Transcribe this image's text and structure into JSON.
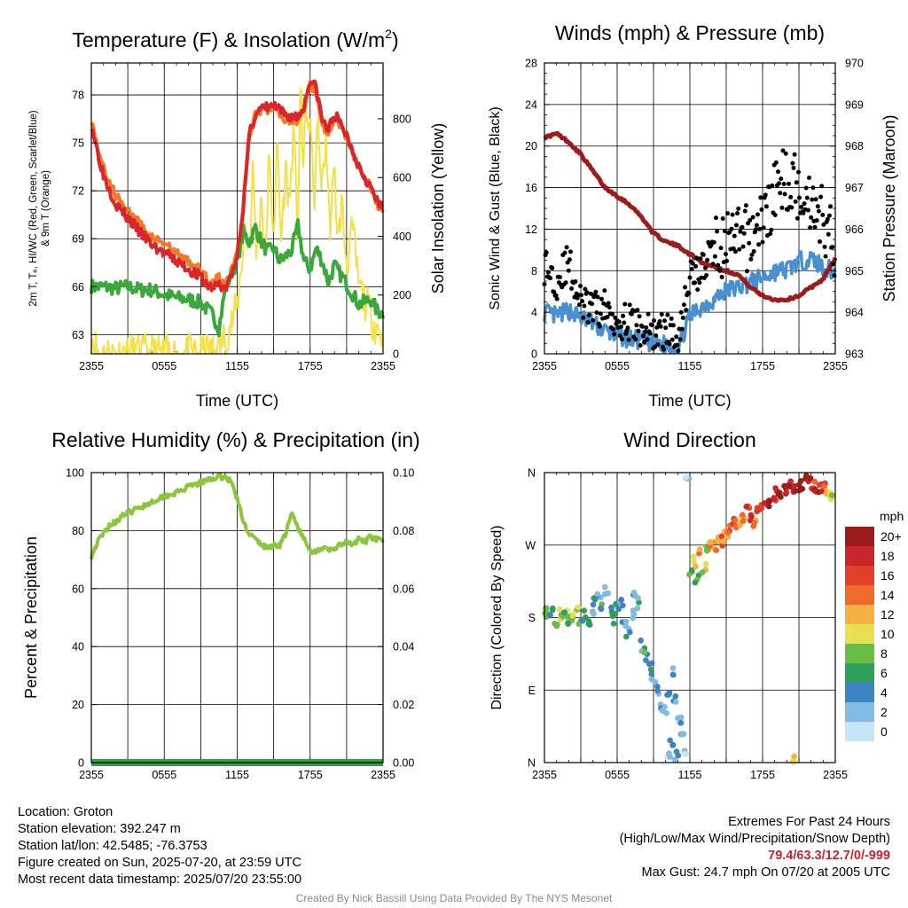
{
  "chart_data": [
    {
      "type": "line",
      "title": "Temperature (F) & Insolation (W/m²)",
      "title_main": "Temperature (F) & Insolation (W/m",
      "title_sup": "2",
      "title_end": ")",
      "xlabel": "Time (UTC)",
      "ylabel_line1": "2m T, Tₑ, HI/WC (Red, Green, Scarlet/Blue)",
      "ylabel_line2": "& 9m T (Orange)",
      "y2label": "Solar Insolation (Yellow)",
      "x_ticks": [
        "2355",
        "0555",
        "1155",
        "1755",
        "2355"
      ],
      "x_range_hours": [
        0,
        24
      ],
      "y_ticks": [
        "63",
        "66",
        "69",
        "72",
        "75",
        "78"
      ],
      "ylim": [
        61.8,
        80
      ],
      "y2_ticks": [
        "0",
        "200",
        "400",
        "600",
        "800"
      ],
      "y2lim": [
        0,
        990
      ],
      "colors": {
        "temp": "#d8262a",
        "temp9m": "#f07a2a",
        "dew": "#3aa83a",
        "solar": "#f5e04a"
      },
      "series": [
        {
          "name": "2m T",
          "color": "#d8262a",
          "x": [
            0,
            0.5,
            1,
            2,
            3,
            4,
            5,
            6,
            7,
            8,
            9,
            9.5,
            10,
            10.5,
            11,
            11.5,
            12,
            12.5,
            13,
            13.5,
            14,
            15,
            16,
            17,
            17.5,
            18,
            18.5,
            19,
            19.5,
            20,
            21,
            22,
            23,
            23.5,
            24
          ],
          "y": [
            76.2,
            74.5,
            73.0,
            71.2,
            70.3,
            69.4,
            68.6,
            68.1,
            67.6,
            67.1,
            66.6,
            66.1,
            65.9,
            66.2,
            65.8,
            66.6,
            68.0,
            71.0,
            75.5,
            76.8,
            77.1,
            77.3,
            76.7,
            76.6,
            77.3,
            79.0,
            78.4,
            76.4,
            75.8,
            76.8,
            75.5,
            73.6,
            72.2,
            71.3,
            70.8
          ]
        },
        {
          "name": "9m T",
          "color": "#f07a2a",
          "x": [
            0,
            0.5,
            1,
            2,
            3,
            4,
            5,
            6,
            7,
            8,
            9,
            9.5,
            10,
            10.5,
            11,
            11.5,
            12,
            12.5,
            13,
            13.5,
            14,
            15,
            16,
            17,
            17.5,
            18,
            18.5,
            19,
            19.5,
            20,
            21,
            22,
            23,
            23.5,
            24
          ],
          "y": [
            76.4,
            74.8,
            73.4,
            71.7,
            70.8,
            69.9,
            69.1,
            68.7,
            68.1,
            67.6,
            67.0,
            66.5,
            66.3,
            66.6,
            66.1,
            66.9,
            68.2,
            71.1,
            75.4,
            76.7,
            77.0,
            77.2,
            76.5,
            76.4,
            77.1,
            78.7,
            78.2,
            76.2,
            75.6,
            76.6,
            75.4,
            73.5,
            72.1,
            71.2,
            70.7
          ]
        },
        {
          "name": "2m Td",
          "color": "#3aa83a",
          "x": [
            0,
            1,
            2,
            3,
            4,
            5,
            6,
            7,
            8,
            9,
            9.5,
            10,
            10.5,
            11,
            11.5,
            12,
            12.5,
            13,
            13.5,
            14,
            14.5,
            15,
            15.5,
            16,
            16.5,
            17,
            17.5,
            18,
            18.5,
            19,
            19.5,
            20,
            21,
            22,
            23,
            23.5,
            24
          ],
          "y": [
            66.0,
            66.0,
            65.9,
            66.0,
            65.8,
            65.8,
            65.5,
            65.3,
            65.2,
            65.0,
            64.6,
            64.2,
            63.4,
            65.8,
            66.8,
            67.6,
            69.4,
            68.8,
            69.7,
            68.8,
            68.2,
            68.4,
            67.6,
            67.9,
            68.3,
            69.8,
            67.6,
            67.1,
            68.4,
            67.6,
            66.3,
            67.3,
            66.2,
            64.9,
            65.2,
            64.5,
            64.3
          ]
        },
        {
          "name": "Solar Insolation",
          "axis": "y2",
          "color": "#f5e04a",
          "x": [
            0,
            0.3,
            0.6,
            1,
            2,
            3,
            4,
            5,
            6,
            7,
            8,
            9,
            10,
            10.5,
            11,
            11.5,
            12,
            12.3,
            12.6,
            13,
            13.3,
            13.6,
            14,
            14.3,
            14.6,
            15,
            15.3,
            15.6,
            16,
            16.3,
            16.6,
            17,
            17.2,
            17.4,
            17.6,
            17.8,
            18,
            18.3,
            18.6,
            19,
            19.3,
            19.6,
            20,
            20.3,
            20.6,
            21,
            21.5,
            22,
            22.5,
            23,
            23.5,
            24
          ],
          "y": [
            70,
            30,
            5,
            0,
            0,
            0,
            0,
            0,
            0,
            0,
            0,
            0,
            5,
            20,
            60,
            100,
            160,
            280,
            440,
            350,
            620,
            330,
            560,
            300,
            650,
            420,
            720,
            380,
            640,
            500,
            760,
            420,
            960,
            560,
            900,
            700,
            860,
            480,
            780,
            560,
            750,
            420,
            620,
            380,
            520,
            300,
            420,
            230,
            180,
            130,
            90,
            60
          ]
        }
      ]
    },
    {
      "type": "scatter",
      "title": "Winds (mph) & Pressure (mb)",
      "xlabel": "Time (UTC)",
      "ylabel": "Sonic Wind & Gust (Blue, Black)",
      "y2label": "Station Pressure (Maroon)",
      "x_ticks": [
        "2355",
        "0555",
        "1155",
        "1755",
        "2355"
      ],
      "x_range_hours": [
        0,
        24
      ],
      "y_ticks": [
        "0",
        "4",
        "8",
        "12",
        "16",
        "20",
        "24",
        "28"
      ],
      "ylim": [
        0,
        28
      ],
      "y2_ticks": [
        "963",
        "964",
        "965",
        "966",
        "967",
        "968",
        "969",
        "970"
      ],
      "y2lim": [
        963,
        970
      ],
      "colors": {
        "wind": "#4a8fd0",
        "gust": "#000000",
        "pressure": "#9b1c1c"
      },
      "series": [
        {
          "name": "Sonic Wind",
          "color": "#4a8fd0",
          "x": [
            0,
            1,
            2,
            3,
            4,
            5,
            6,
            7,
            8,
            9,
            10,
            11,
            12,
            13,
            14,
            15,
            16,
            17,
            18,
            19,
            20,
            21,
            22,
            23,
            24
          ],
          "y": [
            4.0,
            3.6,
            4.2,
            3.5,
            2.9,
            2.2,
            1.8,
            1.4,
            1.3,
            0.9,
            0.9,
            0.6,
            3.6,
            4.6,
            5.2,
            6.1,
            6.4,
            6.9,
            7.3,
            7.9,
            8.1,
            8.9,
            9.1,
            8.4,
            7.8
          ]
        },
        {
          "name": "Gust",
          "color": "#000000",
          "x": [
            0,
            1,
            2,
            3,
            4,
            5,
            6,
            7,
            8,
            9,
            10,
            11,
            12,
            13,
            14,
            15,
            16,
            17,
            18,
            19,
            20,
            21,
            22,
            23,
            24
          ],
          "y": [
            8.5,
            7.0,
            8.8,
            4.8,
            4.2,
            4.4,
            3.3,
            3.0,
            2.4,
            2.0,
            2.2,
            1.6,
            7.5,
            8.1,
            10.4,
            10.5,
            10.9,
            11.2,
            12.8,
            15.5,
            17.0,
            15.9,
            14.8,
            13.0,
            10.2
          ]
        },
        {
          "name": "Station Pressure",
          "axis": "y2",
          "color": "#9b1c1c",
          "x": [
            0,
            1,
            2,
            3,
            4,
            5,
            6,
            7,
            8,
            9,
            10,
            11,
            12,
            13,
            14,
            15,
            16,
            17,
            18,
            19,
            20,
            21,
            22,
            23,
            24
          ],
          "y": [
            968.2,
            968.3,
            968.1,
            967.8,
            967.4,
            967.0,
            966.8,
            966.6,
            966.3,
            965.9,
            965.7,
            965.6,
            965.4,
            965.2,
            965.1,
            965.0,
            964.9,
            964.6,
            964.4,
            964.3,
            964.3,
            964.4,
            964.6,
            964.8,
            965.3
          ]
        }
      ]
    },
    {
      "type": "line",
      "title": "Relative Humidity (%) & Precipitation (in)",
      "ylabel": "Percent & Precipitation",
      "x_ticks": [
        "2355",
        "0555",
        "1155",
        "1755",
        "2355"
      ],
      "x_range_hours": [
        0,
        24
      ],
      "y_ticks": [
        "0",
        "20",
        "40",
        "60",
        "80",
        "100"
      ],
      "ylim": [
        0,
        100
      ],
      "y2_ticks": [
        "0.00",
        "0.02",
        "0.04",
        "0.06",
        "0.08",
        "0.10"
      ],
      "y2lim": [
        0,
        0.1
      ],
      "colors": {
        "rh": "#8cc63e",
        "precip": "#2f9e44"
      },
      "series": [
        {
          "name": "Relative Humidity",
          "color": "#8cc63e",
          "x": [
            0,
            0.5,
            1,
            1.5,
            2,
            2.5,
            3,
            4,
            5,
            6,
            7,
            8,
            9,
            10,
            10.5,
            11,
            11.5,
            12,
            12.5,
            13,
            13.5,
            14,
            14.5,
            15,
            15.5,
            16,
            16.5,
            17,
            17.5,
            18,
            18.5,
            19,
            19.5,
            20,
            20.5,
            21,
            21.5,
            22,
            22.5,
            23,
            23.5,
            24
          ],
          "y": [
            71,
            76,
            79,
            82,
            83,
            85,
            86,
            88,
            90,
            92,
            93,
            95,
            96.5,
            98,
            98.5,
            98.5,
            97,
            91,
            83,
            79,
            77,
            75,
            74,
            75,
            75,
            79,
            86,
            81,
            77,
            73,
            73,
            74,
            73,
            74,
            75,
            76,
            75,
            77,
            76,
            78,
            77,
            76
          ]
        },
        {
          "name": "Precipitation",
          "axis": "y2",
          "color": "#2f9e44",
          "x": [
            0,
            24
          ],
          "y": [
            0,
            0
          ]
        }
      ]
    },
    {
      "type": "scatter",
      "title": "Wind Direction",
      "ylabel": "Direction (Colored By Speed)",
      "x_ticks": [
        "2355",
        "0555",
        "1155",
        "1755",
        "2355"
      ],
      "x_range_hours": [
        0,
        24
      ],
      "y_ticks": [
        "N",
        "E",
        "S",
        "W",
        "N"
      ],
      "ylim_degrees": [
        0,
        360
      ],
      "legend_title": "mph",
      "legend_levels": [
        "0",
        "2",
        "4",
        "6",
        "8",
        "10",
        "12",
        "14",
        "16",
        "18",
        "20+"
      ],
      "legend_colors": [
        "#c6e6f7",
        "#82bce3",
        "#3e83c4",
        "#2fa05a",
        "#6cbd45",
        "#e8e050",
        "#f7b043",
        "#f06a2c",
        "#e23f2a",
        "#c9262b",
        "#9b1c1c"
      ],
      "legend_placement": "right",
      "series": [
        {
          "name": "Direction",
          "x": [
            0,
            0.3,
            0.6,
            0.9,
            1.2,
            1.5,
            1.8,
            2.1,
            2.4,
            2.7,
            3.0,
            3.3,
            3.6,
            3.9,
            4.2,
            4.5,
            4.8,
            5.1,
            5.4,
            5.7,
            6.0,
            6.3,
            6.6,
            6.9,
            7.2,
            7.5,
            7.8,
            8.1,
            8.4,
            8.7,
            9.0,
            9.3,
            9.6,
            9.9,
            10.2,
            10.5,
            10.8,
            11.1,
            11.4,
            11.7,
            12.0,
            12.3,
            12.6,
            12.9,
            13.2,
            13.5,
            13.8,
            14.1,
            14.4,
            14.7,
            15.0,
            15.3,
            15.6,
            15.9,
            16.2,
            16.5,
            16.8,
            17.1,
            17.4,
            17.7,
            18.0,
            18.3,
            18.6,
            18.9,
            19.2,
            19.5,
            19.8,
            20.1,
            20.4,
            20.7,
            21.0,
            21.3,
            21.6,
            21.9,
            22.2,
            22.5,
            22.8,
            23.1,
            23.4,
            23.7,
            10.2,
            10.5,
            11.2,
            11.8,
            20.5,
            10.9
          ],
          "y": [
            187,
            182,
            188,
            176,
            185,
            178,
            184,
            173,
            181,
            186,
            176,
            183,
            172,
            190,
            198,
            205,
            193,
            215,
            188,
            178,
            194,
            202,
            170,
            160,
            182,
            210,
            198,
            145,
            130,
            118,
            105,
            88,
            72,
            64,
            90,
            112,
            80,
            55,
            30,
            15,
            235,
            250,
            228,
            258,
            242,
            265,
            272,
            268,
            280,
            276,
            285,
            290,
            300,
            295,
            298,
            304,
            312,
            306,
            298,
            315,
            318,
            325,
            320,
            330,
            335,
            328,
            338,
            342,
            346,
            340,
            338,
            344,
            350,
            347,
            345,
            341,
            343,
            349,
            338,
            332,
            5,
            22,
            50,
            355,
            2,
            8
          ],
          "speed": [
            3,
            4,
            3,
            4,
            5,
            4,
            4,
            3,
            4,
            5,
            4,
            3,
            3,
            2,
            2,
            2,
            3,
            1,
            2,
            3,
            2,
            1,
            2,
            2,
            1,
            1,
            2,
            2,
            3,
            2,
            1,
            2,
            1,
            1,
            2,
            1,
            2,
            1,
            1,
            0,
            4,
            5,
            3,
            6,
            5,
            4,
            6,
            7,
            6,
            7,
            6,
            7,
            8,
            7,
            6,
            7,
            8,
            9,
            7,
            8,
            8,
            9,
            10,
            8,
            9,
            10,
            11,
            9,
            10,
            9,
            12,
            10,
            11,
            9,
            8,
            10,
            9,
            7,
            6,
            5,
            1,
            2,
            1,
            1,
            6,
            2
          ]
        }
      ]
    }
  ],
  "info": {
    "location": "Location: Groton",
    "elevation": "Station elevation: 392.247 m",
    "latlon": "Station lat/lon: 42.5485; -76.3753",
    "created": "Figure created on Sun, 2025-07-20, at 23:59 UTC",
    "recent": "Most recent data timestamp: 2025/07/20 23:55:00"
  },
  "extremes": {
    "title": "Extremes For Past 24 Hours",
    "subtitle": "(High/Low/Max Wind/Precipitation/Snow Depth)",
    "values": "79.4/63.3/12.7/0/-999",
    "max_gust": "Max Gust: 24.7 mph On 07/20 at 2005 UTC"
  },
  "credit": "Created By Nick Bassill Using Data Provided By The NYS Mesonet"
}
